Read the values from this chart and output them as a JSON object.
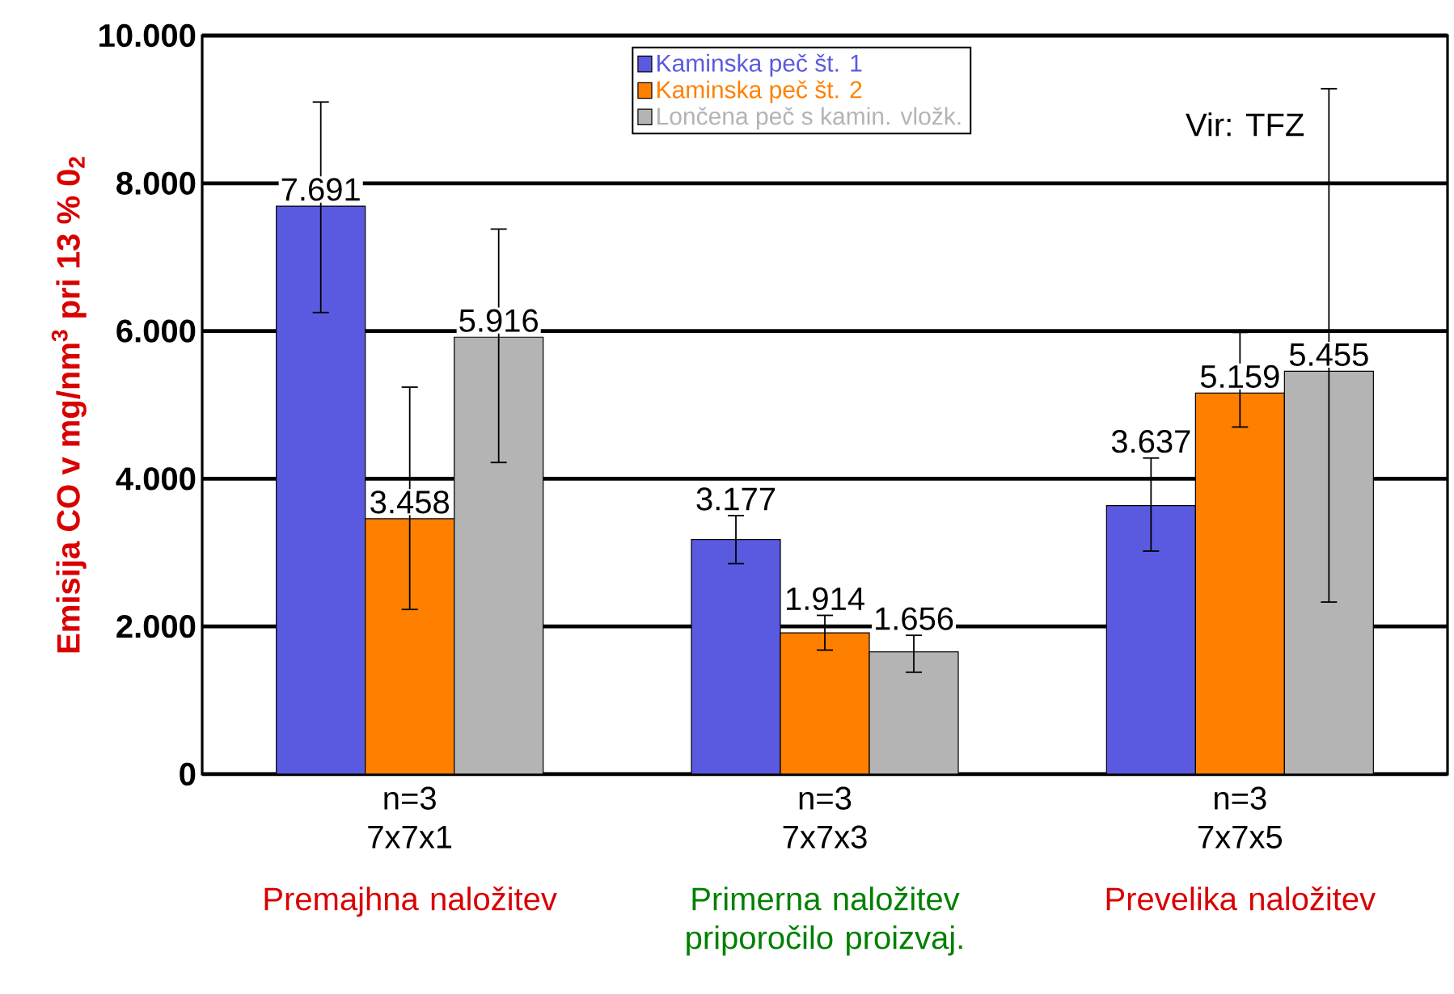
{
  "chart_data": {
    "type": "bar",
    "ylabel": "Emisija CO v mg/nm$^{3}$ pri 13 % 0$_{2}$",
    "categories": [
      "n=3 7x7x1",
      "n=3 7x7x3",
      "n=3 7x7x5"
    ],
    "series": [
      {
        "name": "Kaminska peč št. 1",
        "color": "#5a5ae0",
        "values": [
          7691,
          3177,
          3637
        ],
        "value_labels": [
          "7.691",
          "3.177",
          "3.637"
        ],
        "errors": [
          [
            6250,
            9100
          ],
          [
            2850,
            3500
          ],
          [
            3020,
            4280
          ]
        ]
      },
      {
        "name": "Kaminska peč št. 2",
        "color": "#ff8000",
        "values": [
          3458,
          1914,
          5159
        ],
        "value_labels": [
          "3.458",
          "1.914",
          "5.159"
        ],
        "errors": [
          [
            2230,
            5240
          ],
          [
            1680,
            2150
          ],
          [
            4700,
            5980
          ]
        ]
      },
      {
        "name": "Lončena peč s kamin. vložk.",
        "color": "#b4b4b4",
        "values": [
          5916,
          1656,
          5455
        ],
        "value_labels": [
          "5.916",
          "1.656",
          "5.455"
        ],
        "errors": [
          [
            4220,
            7380
          ],
          [
            1380,
            1880
          ],
          [
            2330,
            9280
          ]
        ]
      }
    ],
    "ylim": [
      0,
      10000
    ],
    "yticks": [
      0,
      {
        "value": 2000,
        "label": "2.000"
      },
      {
        "value": 4000,
        "label": "4.000"
      },
      {
        "value": 6000,
        "label": "6.000"
      },
      {
        "value": 8000,
        "label": "8.000"
      },
      {
        "value": 10000,
        "label": "10.000"
      }
    ],
    "grid": "y",
    "legend": "top",
    "annotations": [
      "Vir: TFZ",
      "Premajhna naložitev",
      "Primerna naložitev priporočilo proizvaj.",
      "Prevelika naložitev"
    ]
  }
}
